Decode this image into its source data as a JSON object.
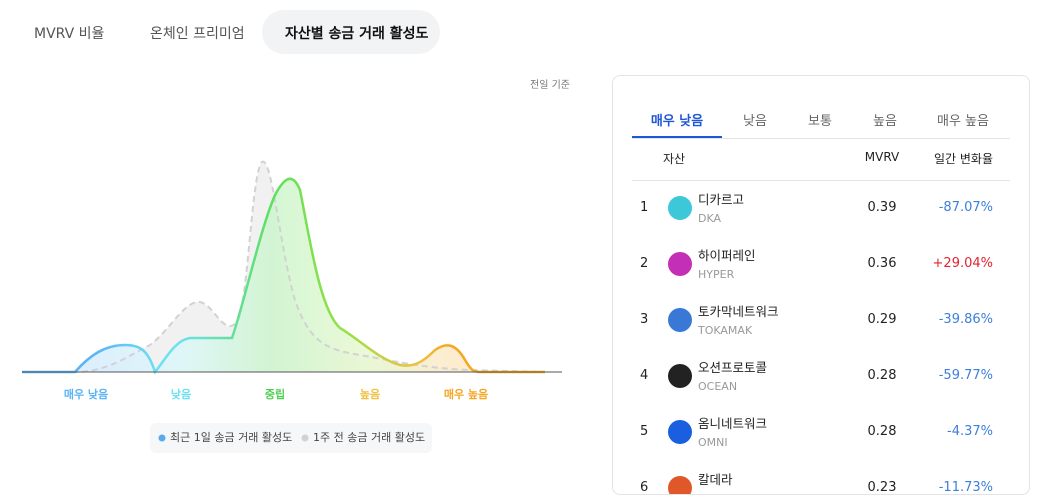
{
  "tabs": [
    "MVRV 비율",
    "온체인 프리미엄",
    "자산별 송금 거래 활성도"
  ],
  "note": "전일 기준",
  "chart": {
    "zones": [
      "매우 낮음",
      "낮음",
      "중립",
      "높음",
      "매우 높음"
    ],
    "legend": [
      "최근 1일 송금 거래 활성도",
      "1주 전 송금 거래 활성도"
    ]
  },
  "panel": {
    "tabs": [
      "매우 낮음",
      "낮음",
      "보통",
      "높음",
      "매우 높음"
    ],
    "header": [
      "자산",
      "MVRV",
      "일간 변화율"
    ],
    "rows": [
      {
        "rank": 1,
        "name": "디카르고",
        "symbol": "DKA",
        "mvrv": "0.39",
        "change": "-87.07%",
        "color": "#3d7fdc"
      },
      {
        "rank": 2,
        "name": "하이퍼레인",
        "symbol": "HYPER",
        "mvrv": "0.36",
        "change": "+29.04%",
        "color": "#e5222f"
      },
      {
        "rank": 3,
        "name": "토카막네트워크",
        "symbol": "TOKAMAK",
        "mvrv": "0.29",
        "change": "-39.86%",
        "color": "#3d7fdc"
      },
      {
        "rank": 4,
        "name": "오션프로토콜",
        "symbol": "OCEAN",
        "mvrv": "0.28",
        "change": "-59.77%",
        "color": "#3d7fdc"
      },
      {
        "rank": 5,
        "name": "옴니네트워크",
        "symbol": "OMNI",
        "mvrv": "0.28",
        "change": "-4.37%",
        "color": "#3d7fdc"
      },
      {
        "rank": 6,
        "name": "칼데라",
        "mvrv": "0.23",
        "change": "-11.73%",
        "color": "#3d7fdc"
      }
    ]
  }
}
